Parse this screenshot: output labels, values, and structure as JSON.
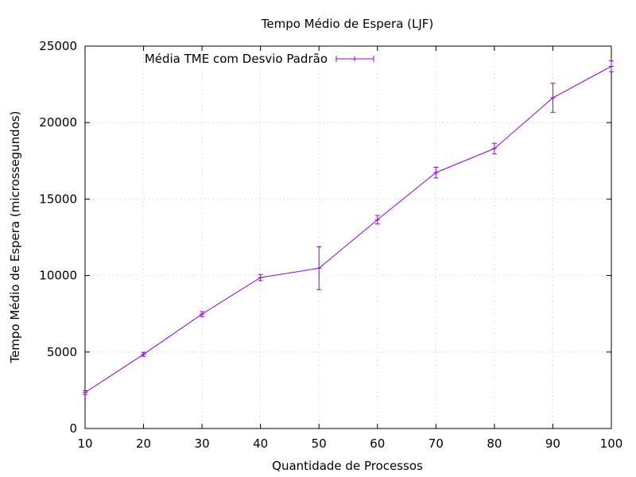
{
  "chart_data": {
    "type": "line",
    "title": "Tempo Médio de Espera (LJF)",
    "xlabel": "Quantidade de Processos",
    "ylabel": "Tempo Médio de Espera (microssegundos)",
    "xlim": [
      10,
      100
    ],
    "ylim": [
      0,
      25000
    ],
    "xticks": [
      10,
      20,
      30,
      40,
      50,
      60,
      70,
      80,
      90,
      100
    ],
    "yticks": [
      0,
      5000,
      10000,
      15000,
      20000,
      25000
    ],
    "grid": true,
    "legend_position": "top-left",
    "series": [
      {
        "name": "Média TME com Desvio Padrão",
        "color": "#9400d3",
        "x": [
          10,
          20,
          30,
          40,
          50,
          60,
          70,
          80,
          90,
          100
        ],
        "y": [
          2350,
          4850,
          7480,
          9870,
          10480,
          13650,
          16730,
          18300,
          21620,
          23680
        ],
        "error": [
          120,
          130,
          160,
          200,
          1400,
          280,
          350,
          350,
          950,
          350
        ]
      }
    ]
  }
}
